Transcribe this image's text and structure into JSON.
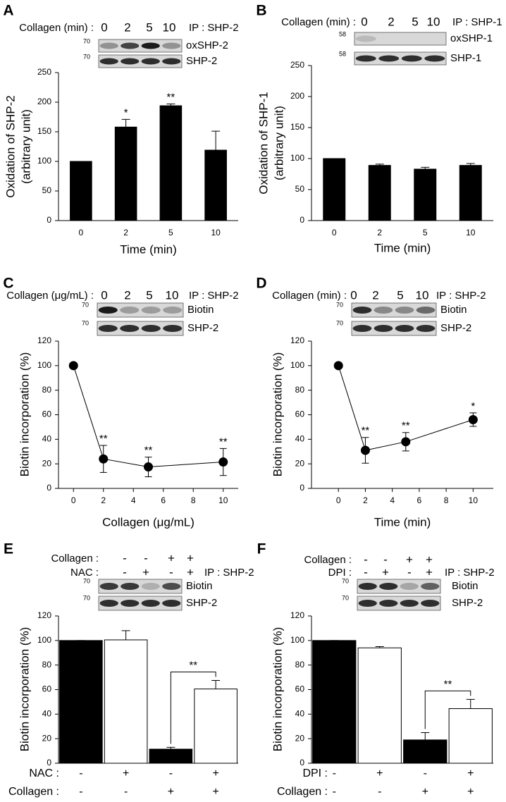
{
  "chart_data": [
    {
      "label": "A",
      "type": "bar",
      "blot": {
        "header": [
          {
            "name": "Collagen (min) :",
            "lanes": [
              "0",
              "2",
              "5",
              "10"
            ]
          }
        ],
        "ip": "IP : SHP-2",
        "bands": [
          {
            "name": "oxSHP-2",
            "mw": "70"
          },
          {
            "name": "SHP-2",
            "mw": "70"
          }
        ]
      },
      "ylabel": [
        "Oxidation of SHP-2",
        "(arbitrary unit)"
      ],
      "xlabel": "Time (min)",
      "categories": [
        "0",
        "2",
        "5",
        "10"
      ],
      "values": [
        100,
        158,
        194,
        119
      ],
      "errors": [
        0,
        13,
        3,
        32
      ],
      "significance": [
        null,
        "*",
        "**",
        null
      ],
      "colors": [
        "#000000",
        "#000000",
        "#000000",
        "#000000"
      ],
      "ylim": [
        0,
        250
      ],
      "yticks": [
        0,
        50,
        100,
        150,
        200,
        250
      ]
    },
    {
      "label": "B",
      "type": "bar",
      "blot": {
        "header": [
          {
            "name": "Collagen (min) :",
            "lanes": [
              "0",
              "2",
              "5",
              "10"
            ]
          }
        ],
        "ip": "IP : SHP-1",
        "bands": [
          {
            "name": "oxSHP-1",
            "mw": "58"
          },
          {
            "name": "SHP-1",
            "mw": "58"
          }
        ]
      },
      "ylabel": [
        "Oxidation of SHP-1",
        "(arbitrary unit)"
      ],
      "xlabel": "Time (min)",
      "categories": [
        "0",
        "2",
        "5",
        "10"
      ],
      "values": [
        100,
        89,
        83,
        89
      ],
      "errors": [
        0,
        2,
        3,
        3
      ],
      "colors": [
        "#000000",
        "#000000",
        "#000000",
        "#000000"
      ],
      "ylim": [
        0,
        250
      ],
      "yticks": [
        0,
        50,
        100,
        150,
        200,
        250
      ]
    },
    {
      "label": "C",
      "type": "line",
      "blot": {
        "header": [
          {
            "name": "Collagen (μg/mL) :",
            "lanes": [
              "0",
              "2",
              "5",
              "10"
            ]
          }
        ],
        "ip": "IP : SHP-2",
        "bands": [
          {
            "name": "Biotin",
            "mw": "70"
          },
          {
            "name": "SHP-2",
            "mw": "70"
          }
        ]
      },
      "ylabel": [
        "Biotin incorporation (%)"
      ],
      "xlabel": "Collagen (μg/mL)",
      "x": [
        0,
        2,
        5,
        10
      ],
      "values": [
        100,
        24,
        17.5,
        21.5
      ],
      "errors": [
        0,
        11,
        8,
        11
      ],
      "significance": [
        null,
        "**",
        "**",
        "**"
      ],
      "color": "#000000",
      "xlim": [
        -1,
        11
      ],
      "xticks": [
        0,
        2,
        4,
        6,
        8,
        10
      ],
      "ylim": [
        0,
        120
      ],
      "yticks": [
        0,
        20,
        40,
        60,
        80,
        100,
        120
      ]
    },
    {
      "label": "D",
      "type": "line",
      "blot": {
        "header": [
          {
            "name": "Collagen (min) :",
            "lanes": [
              "0",
              "2",
              "5",
              "10"
            ]
          }
        ],
        "ip": "IP : SHP-2",
        "bands": [
          {
            "name": "Biotin",
            "mw": "70"
          },
          {
            "name": "SHP-2",
            "mw": "70"
          }
        ]
      },
      "ylabel": [
        "Biotin incorporation (%)"
      ],
      "xlabel": "Time (min)",
      "x": [
        0,
        2,
        5,
        10
      ],
      "values": [
        100,
        31,
        38,
        56
      ],
      "errors": [
        0,
        10.5,
        7.5,
        5.5
      ],
      "significance": [
        null,
        "**",
        "**",
        "*"
      ],
      "color": "#000000",
      "xlim": [
        -2,
        11.5
      ],
      "xticks": [
        0,
        2,
        4,
        6,
        8,
        10
      ],
      "ylim": [
        0,
        120
      ],
      "yticks": [
        0,
        20,
        40,
        60,
        80,
        100,
        120
      ]
    },
    {
      "label": "E",
      "type": "bar",
      "blot": {
        "header": [
          {
            "name": "Collagen :",
            "lanes": [
              "-",
              "-",
              "+",
              "+"
            ]
          },
          {
            "name": "NAC :",
            "lanes": [
              "-",
              "+",
              "-",
              "+"
            ]
          }
        ],
        "ip": "IP : SHP-2",
        "bands": [
          {
            "name": "Biotin",
            "mw": "70"
          },
          {
            "name": "SHP-2",
            "mw": "70"
          }
        ]
      },
      "ylabel": [
        "Biotin incorporation (%)"
      ],
      "conditions": [
        {
          "name": "NAC :",
          "values": [
            "-",
            "+",
            "-",
            "+"
          ]
        },
        {
          "name": "Collagen :",
          "values": [
            "-",
            "-",
            "+",
            "+"
          ]
        }
      ],
      "values": [
        100,
        100.5,
        11.5,
        60.5
      ],
      "errors": [
        0,
        7.5,
        1.5,
        7
      ],
      "significance": [
        null,
        null,
        null,
        "**"
      ],
      "significance_bracket": true,
      "colors": [
        "#000000",
        "#ffffff",
        "#000000",
        "#ffffff"
      ],
      "ylim": [
        0,
        120
      ],
      "yticks": [
        0,
        20,
        40,
        60,
        80,
        100,
        120
      ]
    },
    {
      "label": "F",
      "type": "bar",
      "blot": {
        "header": [
          {
            "name": "Collagen :",
            "lanes": [
              "-",
              "-",
              "+",
              "+"
            ]
          },
          {
            "name": "DPI :",
            "lanes": [
              "-",
              "+",
              "-",
              "+"
            ]
          }
        ],
        "ip": "IP : SHP-2",
        "bands": [
          {
            "name": "Biotin",
            "mw": "70"
          },
          {
            "name": "SHP-2",
            "mw": "70"
          }
        ]
      },
      "ylabel": [
        "Biotin incorporation (%)"
      ],
      "conditions": [
        {
          "name": "DPI :",
          "values": [
            "-",
            "+",
            "-",
            "+"
          ]
        },
        {
          "name": "Collagen :",
          "values": [
            "-",
            "-",
            "+",
            "+"
          ]
        }
      ],
      "values": [
        100,
        94,
        19,
        44.5
      ],
      "errors": [
        0,
        1,
        6,
        7.5
      ],
      "significance": [
        null,
        null,
        null,
        "**"
      ],
      "significance_bracket": true,
      "colors": [
        "#000000",
        "#ffffff",
        "#000000",
        "#ffffff"
      ],
      "ylim": [
        0,
        120
      ],
      "yticks": [
        0,
        20,
        40,
        60,
        80,
        100,
        120
      ]
    }
  ]
}
